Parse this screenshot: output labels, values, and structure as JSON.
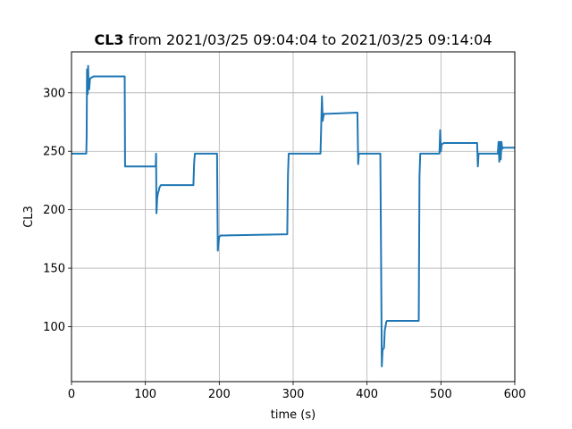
{
  "chart_data": {
    "type": "line",
    "title_bold": "CL3",
    "title_rest": " from 2021/03/25 09:04:04 to 2021/03/25 09:14:04",
    "xlabel": "time (s)",
    "ylabel": "CL3",
    "xlim": [
      0,
      600
    ],
    "ylim": [
      53,
      335
    ],
    "xticks": [
      0,
      100,
      200,
      300,
      400,
      500,
      600
    ],
    "yticks": [
      100,
      150,
      200,
      250,
      300
    ],
    "grid": true,
    "line_color": "#1f77b4",
    "series": [
      {
        "x": [
          0,
          20,
          20.5,
          21,
          22,
          22.5,
          23,
          24,
          25,
          27,
          30,
          72,
          72.5,
          114,
          114.5,
          115,
          116,
          117,
          118,
          119,
          120,
          121,
          165,
          166,
          167,
          197,
          198,
          199,
          200,
          202,
          205,
          292,
          293,
          294,
          295,
          337,
          338,
          339,
          340,
          341,
          342,
          344,
          387,
          388,
          389,
          390,
          418,
          419,
          420,
          421,
          423,
          424,
          425,
          426,
          427,
          470,
          471,
          472,
          475,
          498,
          499,
          500,
          501,
          504,
          549,
          550,
          551,
          553,
          577,
          578,
          579,
          580,
          581,
          582,
          583,
          584,
          585,
          600
        ],
        "y": [
          248,
          248,
          262,
          320,
          299,
          323,
          310,
          303,
          312,
          313,
          314,
          314,
          237,
          237,
          248,
          197,
          210,
          214,
          216,
          219,
          220,
          221,
          221,
          240,
          248,
          248,
          165,
          172,
          177,
          178,
          178,
          179,
          230,
          248,
          248,
          248,
          272,
          297,
          276,
          280,
          282,
          282,
          283,
          239,
          248,
          248,
          248,
          160,
          66,
          80,
          82,
          97,
          100,
          104,
          105,
          105,
          228,
          248,
          248,
          248,
          268,
          250,
          256,
          257,
          257,
          237,
          248,
          248,
          248,
          258,
          241,
          258,
          243,
          258,
          252,
          253,
          253,
          253
        ]
      }
    ]
  }
}
